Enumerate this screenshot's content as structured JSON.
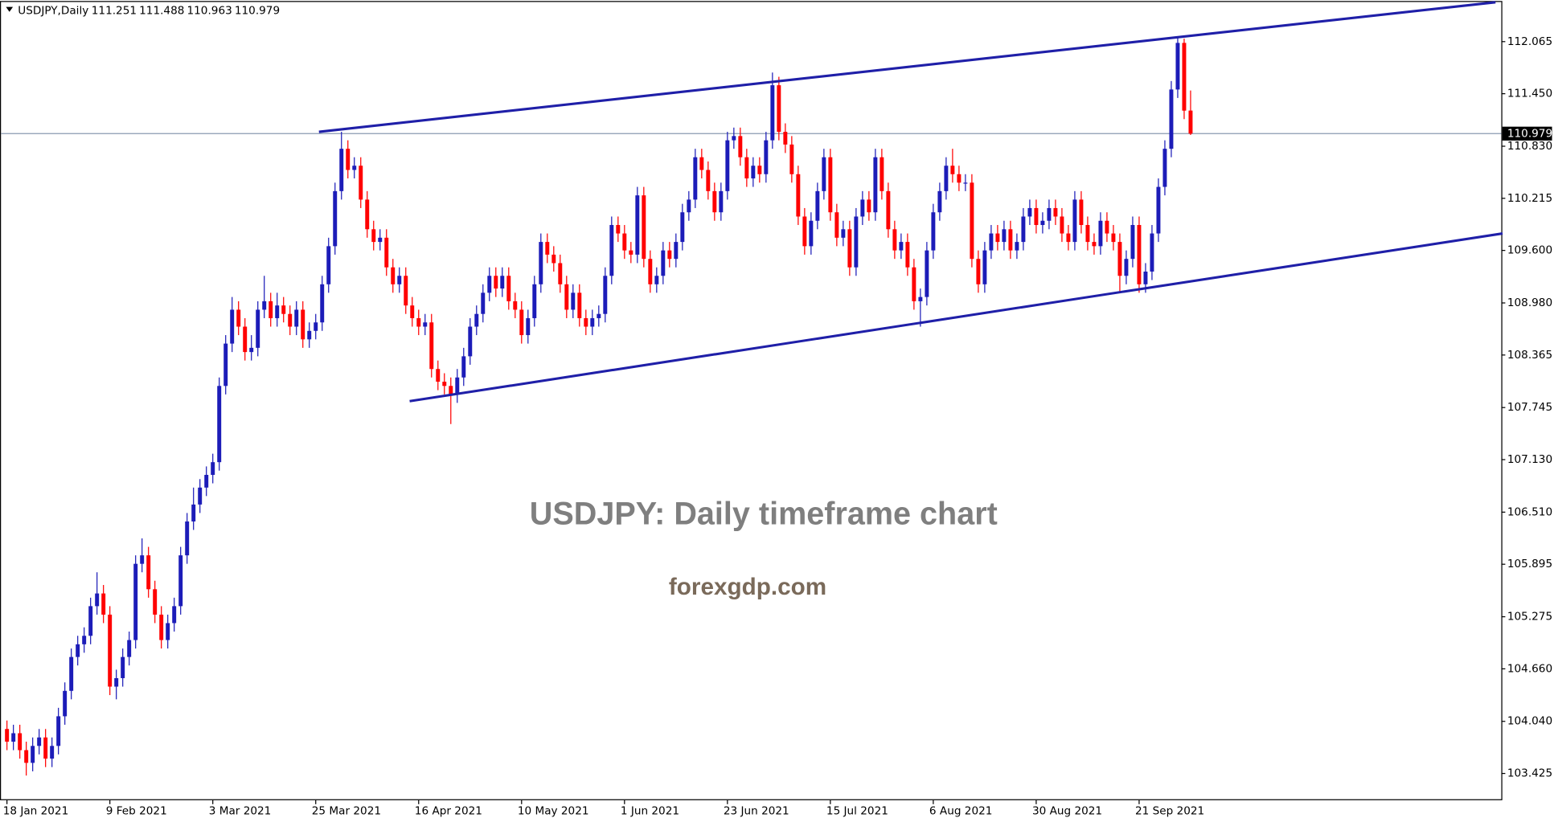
{
  "chart_data": {
    "type": "candlestick",
    "symbol": "USDJPY,Daily",
    "annotations": [
      "USDJPY: Daily timeframe chart",
      "forexgdp.com"
    ],
    "colors": {
      "up": "#1c1cb8",
      "down": "#ff0000"
    },
    "price_line_color": "#8a9ab0",
    "ylim": [
      103.109,
      112.533
    ],
    "yticks": [
      112.065,
      {
        "value": 111.45,
        "label": "111.450"
      },
      {
        "value": 110.83,
        "label": "110.830"
      },
      110.215,
      {
        "value": 109.6,
        "label": "109.600"
      },
      {
        "value": 108.98,
        "label": "108.980"
      },
      108.365,
      107.745,
      {
        "value": 107.13,
        "label": "107.130"
      },
      {
        "value": 106.51,
        "label": "106.510"
      },
      105.895,
      105.275,
      {
        "value": 104.66,
        "label": "104.660"
      },
      {
        "value": 104.04,
        "label": "104.040"
      },
      103.425
    ],
    "categories": [
      "18 Jan 2021",
      null,
      null,
      null,
      null,
      null,
      null,
      null,
      null,
      null,
      null,
      null,
      null,
      null,
      null,
      null,
      "9 Feb 2021",
      null,
      null,
      null,
      null,
      null,
      null,
      null,
      null,
      null,
      null,
      null,
      null,
      null,
      null,
      null,
      "3 Mar 2021",
      null,
      null,
      null,
      null,
      null,
      null,
      null,
      null,
      null,
      null,
      null,
      null,
      null,
      null,
      null,
      "25 Mar 2021",
      null,
      null,
      null,
      null,
      null,
      null,
      null,
      null,
      null,
      null,
      null,
      null,
      null,
      null,
      null,
      "16 Apr 2021",
      null,
      null,
      null,
      null,
      null,
      null,
      null,
      null,
      null,
      null,
      null,
      null,
      null,
      null,
      null,
      "10 May 2021",
      null,
      null,
      null,
      null,
      null,
      null,
      null,
      null,
      null,
      null,
      null,
      null,
      null,
      null,
      null,
      "1 Jun 2021",
      null,
      null,
      null,
      null,
      null,
      null,
      null,
      null,
      null,
      null,
      null,
      null,
      null,
      null,
      null,
      "23 Jun 2021",
      null,
      null,
      null,
      null,
      null,
      null,
      null,
      null,
      null,
      null,
      null,
      null,
      null,
      null,
      null,
      "15 Jul 2021",
      null,
      null,
      null,
      null,
      null,
      null,
      null,
      null,
      null,
      null,
      null,
      null,
      null,
      null,
      null,
      "6 Aug 2021",
      null,
      null,
      null,
      null,
      null,
      null,
      null,
      null,
      null,
      null,
      null,
      null,
      null,
      null,
      null,
      "30 Aug 2021",
      null,
      null,
      null,
      null,
      null,
      null,
      null,
      null,
      null,
      null,
      null,
      null,
      null,
      null,
      null,
      "21 Sep 2021",
      null,
      null,
      null,
      null,
      null,
      null,
      null,
      null
    ],
    "ohlc": [
      [
        103.95,
        104.05,
        103.7,
        103.8
      ],
      [
        103.8,
        104.0,
        103.7,
        103.9
      ],
      [
        103.9,
        104.0,
        103.6,
        103.7
      ],
      [
        103.7,
        103.8,
        103.4,
        103.55
      ],
      [
        103.55,
        103.85,
        103.45,
        103.75
      ],
      [
        103.75,
        103.95,
        103.65,
        103.85
      ],
      [
        103.85,
        103.95,
        103.5,
        103.6
      ],
      [
        103.6,
        103.85,
        103.5,
        103.75
      ],
      [
        103.75,
        104.2,
        103.65,
        104.1
      ],
      [
        104.1,
        104.5,
        104.0,
        104.4
      ],
      [
        104.4,
        104.9,
        104.3,
        104.8
      ],
      [
        104.8,
        105.05,
        104.7,
        104.95
      ],
      [
        104.95,
        105.15,
        104.85,
        105.05
      ],
      [
        105.05,
        105.5,
        104.95,
        105.4
      ],
      [
        105.4,
        105.8,
        105.3,
        105.55
      ],
      [
        105.55,
        105.65,
        105.2,
        105.3
      ],
      [
        105.3,
        105.4,
        104.35,
        104.45
      ],
      [
        104.45,
        104.65,
        104.3,
        104.55
      ],
      [
        104.55,
        104.9,
        104.45,
        104.8
      ],
      [
        104.8,
        105.1,
        104.7,
        105.0
      ],
      [
        105.0,
        106.0,
        104.9,
        105.9
      ],
      [
        105.9,
        106.2,
        105.8,
        106.0
      ],
      [
        106.0,
        106.1,
        105.5,
        105.6
      ],
      [
        105.6,
        105.7,
        105.2,
        105.3
      ],
      [
        105.3,
        105.4,
        104.9,
        105.0
      ],
      [
        105.0,
        105.3,
        104.9,
        105.2
      ],
      [
        105.2,
        105.5,
        105.1,
        105.4
      ],
      [
        105.4,
        106.1,
        105.3,
        106.0
      ],
      [
        106.0,
        106.5,
        105.9,
        106.4
      ],
      [
        106.4,
        106.8,
        106.3,
        106.6
      ],
      [
        106.6,
        106.9,
        106.5,
        106.8
      ],
      [
        106.8,
        107.05,
        106.7,
        106.95
      ],
      [
        106.95,
        107.2,
        106.85,
        107.1
      ],
      [
        107.1,
        108.1,
        107.0,
        108.0
      ],
      [
        108.0,
        108.6,
        107.9,
        108.5
      ],
      [
        108.5,
        109.05,
        108.4,
        108.9
      ],
      [
        108.9,
        109.0,
        108.6,
        108.7
      ],
      [
        108.7,
        108.8,
        108.3,
        108.4
      ],
      [
        108.4,
        108.6,
        108.3,
        108.45
      ],
      [
        108.45,
        109.0,
        108.35,
        108.9
      ],
      [
        108.9,
        109.3,
        108.8,
        109.0
      ],
      [
        109.0,
        109.1,
        108.7,
        108.8
      ],
      [
        108.8,
        109.1,
        108.7,
        108.95
      ],
      [
        108.95,
        109.05,
        108.75,
        108.85
      ],
      [
        108.85,
        108.95,
        108.6,
        108.7
      ],
      [
        108.7,
        109.0,
        108.6,
        108.9
      ],
      [
        108.9,
        109.0,
        108.45,
        108.55
      ],
      [
        108.55,
        108.75,
        108.45,
        108.65
      ],
      [
        108.65,
        108.85,
        108.55,
        108.75
      ],
      [
        108.75,
        109.3,
        108.65,
        109.2
      ],
      [
        109.2,
        109.75,
        109.1,
        109.65
      ],
      [
        109.65,
        110.4,
        109.55,
        110.3
      ],
      [
        110.3,
        111.0,
        110.2,
        110.8
      ],
      [
        110.8,
        110.9,
        110.45,
        110.55
      ],
      [
        110.55,
        110.7,
        110.45,
        110.6
      ],
      [
        110.6,
        110.7,
        110.1,
        110.2
      ],
      [
        110.2,
        110.3,
        109.75,
        109.85
      ],
      [
        109.85,
        109.95,
        109.6,
        109.7
      ],
      [
        109.7,
        109.85,
        109.6,
        109.75
      ],
      [
        109.75,
        109.85,
        109.3,
        109.4
      ],
      [
        109.4,
        109.5,
        109.1,
        109.2
      ],
      [
        109.2,
        109.4,
        109.1,
        109.3
      ],
      [
        109.3,
        109.4,
        108.85,
        108.95
      ],
      [
        108.95,
        109.05,
        108.7,
        108.8
      ],
      [
        108.8,
        108.9,
        108.6,
        108.7
      ],
      [
        108.7,
        108.85,
        108.6,
        108.75
      ],
      [
        108.75,
        108.85,
        108.1,
        108.2
      ],
      [
        108.2,
        108.3,
        107.95,
        108.05
      ],
      [
        108.05,
        108.15,
        107.9,
        108.0
      ],
      [
        108.0,
        108.1,
        107.55,
        107.9
      ],
      [
        107.9,
        108.2,
        107.8,
        108.1
      ],
      [
        108.1,
        108.45,
        108.0,
        108.35
      ],
      [
        108.35,
        108.8,
        108.25,
        108.7
      ],
      [
        108.7,
        108.95,
        108.6,
        108.85
      ],
      [
        108.85,
        109.2,
        108.75,
        109.1
      ],
      [
        109.1,
        109.4,
        109.0,
        109.3
      ],
      [
        109.3,
        109.4,
        109.05,
        109.15
      ],
      [
        109.15,
        109.4,
        109.05,
        109.3
      ],
      [
        109.3,
        109.4,
        108.9,
        109.0
      ],
      [
        109.0,
        109.1,
        108.8,
        108.9
      ],
      [
        108.9,
        109.0,
        108.5,
        108.6
      ],
      [
        108.6,
        108.9,
        108.5,
        108.8
      ],
      [
        108.8,
        109.3,
        108.7,
        109.2
      ],
      [
        109.2,
        109.8,
        109.1,
        109.7
      ],
      [
        109.7,
        109.8,
        109.45,
        109.55
      ],
      [
        109.55,
        109.65,
        109.35,
        109.45
      ],
      [
        109.45,
        109.55,
        109.1,
        109.2
      ],
      [
        109.2,
        109.3,
        108.8,
        108.9
      ],
      [
        108.9,
        109.2,
        108.8,
        109.1
      ],
      [
        109.1,
        109.2,
        108.7,
        108.8
      ],
      [
        108.8,
        108.9,
        108.6,
        108.7
      ],
      [
        108.7,
        108.9,
        108.6,
        108.8
      ],
      [
        108.8,
        108.95,
        108.7,
        108.85
      ],
      [
        108.85,
        109.4,
        108.75,
        109.3
      ],
      [
        109.3,
        110.0,
        109.2,
        109.9
      ],
      [
        109.9,
        110.0,
        109.7,
        109.8
      ],
      [
        109.8,
        109.9,
        109.5,
        109.6
      ],
      [
        109.6,
        109.7,
        109.45,
        109.55
      ],
      [
        109.55,
        110.35,
        109.45,
        110.25
      ],
      [
        110.25,
        110.35,
        109.4,
        109.5
      ],
      [
        109.5,
        109.6,
        109.1,
        109.2
      ],
      [
        109.2,
        109.4,
        109.1,
        109.3
      ],
      [
        109.3,
        109.7,
        109.2,
        109.6
      ],
      [
        109.6,
        109.7,
        109.4,
        109.5
      ],
      [
        109.5,
        109.8,
        109.4,
        109.7
      ],
      [
        109.7,
        110.15,
        109.6,
        110.05
      ],
      [
        110.05,
        110.3,
        109.95,
        110.2
      ],
      [
        110.2,
        110.8,
        110.1,
        110.7
      ],
      [
        110.7,
        110.8,
        110.45,
        110.55
      ],
      [
        110.55,
        110.65,
        110.2,
        110.3
      ],
      [
        110.3,
        110.4,
        109.95,
        110.05
      ],
      [
        110.05,
        110.4,
        109.95,
        110.3
      ],
      [
        110.3,
        111.0,
        110.2,
        110.9
      ],
      [
        110.9,
        111.05,
        110.8,
        110.95
      ],
      [
        110.95,
        111.05,
        110.6,
        110.7
      ],
      [
        110.7,
        110.8,
        110.35,
        110.45
      ],
      [
        110.45,
        110.7,
        110.35,
        110.6
      ],
      [
        110.6,
        110.7,
        110.4,
        110.5
      ],
      [
        110.5,
        111.0,
        110.4,
        110.9
      ],
      [
        110.9,
        111.7,
        110.8,
        111.55
      ],
      [
        111.55,
        111.65,
        110.9,
        111.0
      ],
      [
        111.0,
        111.1,
        110.75,
        110.85
      ],
      [
        110.85,
        110.95,
        110.4,
        110.5
      ],
      [
        110.5,
        110.6,
        109.9,
        110.0
      ],
      [
        110.0,
        110.1,
        109.55,
        109.65
      ],
      [
        109.65,
        110.05,
        109.55,
        109.95
      ],
      [
        109.95,
        110.4,
        109.85,
        110.3
      ],
      [
        110.3,
        110.8,
        110.2,
        110.7
      ],
      [
        110.7,
        110.8,
        109.95,
        110.05
      ],
      [
        110.05,
        110.15,
        109.65,
        109.75
      ],
      [
        109.75,
        109.95,
        109.65,
        109.85
      ],
      [
        109.85,
        109.95,
        109.3,
        109.4
      ],
      [
        109.4,
        110.1,
        109.3,
        110.0
      ],
      [
        110.0,
        110.3,
        109.9,
        110.2
      ],
      [
        110.2,
        110.3,
        109.95,
        110.05
      ],
      [
        110.05,
        110.8,
        109.95,
        110.7
      ],
      [
        110.7,
        110.8,
        110.2,
        110.3
      ],
      [
        110.3,
        110.4,
        109.75,
        109.85
      ],
      [
        109.85,
        109.95,
        109.5,
        109.6
      ],
      [
        109.6,
        109.8,
        109.5,
        109.7
      ],
      [
        109.7,
        109.8,
        109.3,
        109.4
      ],
      [
        109.4,
        109.5,
        108.9,
        109.0
      ],
      [
        109.0,
        109.15,
        108.7,
        109.05
      ],
      [
        109.05,
        109.7,
        108.95,
        109.6
      ],
      [
        109.6,
        110.15,
        109.5,
        110.05
      ],
      [
        110.05,
        110.4,
        109.95,
        110.3
      ],
      [
        110.3,
        110.7,
        110.2,
        110.6
      ],
      [
        110.6,
        110.8,
        110.4,
        110.5
      ],
      [
        110.5,
        110.6,
        110.3,
        110.4
      ],
      [
        110.4,
        110.5,
        110.3,
        110.4
      ],
      [
        110.4,
        110.5,
        109.4,
        109.5
      ],
      [
        109.5,
        109.6,
        109.1,
        109.2
      ],
      [
        109.2,
        109.7,
        109.1,
        109.6
      ],
      [
        109.6,
        109.9,
        109.5,
        109.8
      ],
      [
        109.8,
        109.9,
        109.6,
        109.7
      ],
      [
        109.7,
        109.95,
        109.6,
        109.85
      ],
      [
        109.85,
        109.95,
        109.5,
        109.6
      ],
      [
        109.6,
        109.8,
        109.5,
        109.7
      ],
      [
        109.7,
        110.1,
        109.6,
        110.0
      ],
      [
        110.0,
        110.2,
        109.9,
        110.1
      ],
      [
        110.1,
        110.2,
        109.8,
        109.9
      ],
      [
        109.9,
        110.05,
        109.8,
        109.95
      ],
      [
        109.95,
        110.2,
        109.85,
        110.1
      ],
      [
        110.1,
        110.2,
        109.9,
        110.0
      ],
      [
        110.0,
        110.1,
        109.7,
        109.8
      ],
      [
        109.8,
        109.9,
        109.6,
        109.7
      ],
      [
        109.7,
        110.3,
        109.6,
        110.2
      ],
      [
        110.2,
        110.3,
        109.8,
        109.9
      ],
      [
        109.9,
        110.0,
        109.6,
        109.7
      ],
      [
        109.7,
        109.8,
        109.55,
        109.65
      ],
      [
        109.65,
        110.05,
        109.55,
        109.95
      ],
      [
        109.95,
        110.05,
        109.7,
        109.8
      ],
      [
        109.8,
        109.9,
        109.6,
        109.7
      ],
      [
        109.7,
        109.8,
        109.1,
        109.3
      ],
      [
        109.3,
        109.6,
        109.2,
        109.5
      ],
      [
        109.5,
        110.0,
        109.4,
        109.9
      ],
      [
        109.9,
        110.0,
        109.1,
        109.2
      ],
      [
        109.2,
        109.45,
        109.1,
        109.35
      ],
      [
        109.35,
        109.9,
        109.25,
        109.8
      ],
      [
        109.8,
        110.45,
        109.7,
        110.35
      ],
      [
        110.35,
        110.9,
        110.25,
        110.8
      ],
      [
        110.8,
        111.6,
        110.7,
        111.5
      ],
      [
        111.5,
        112.12,
        111.4,
        112.05
      ],
      [
        112.05,
        112.1,
        111.15,
        111.25
      ],
      [
        111.251,
        111.488,
        110.963,
        110.979
      ]
    ],
    "trendlines": [
      {
        "color": "#1f1fa8",
        "x": [
          48.5,
          231.4
        ],
        "y": [
          111.0,
          112.53
        ]
      },
      {
        "color": "#1f1fa8",
        "x": [
          62.6,
          232.5
        ],
        "y": [
          107.82,
          109.8
        ]
      }
    ]
  }
}
